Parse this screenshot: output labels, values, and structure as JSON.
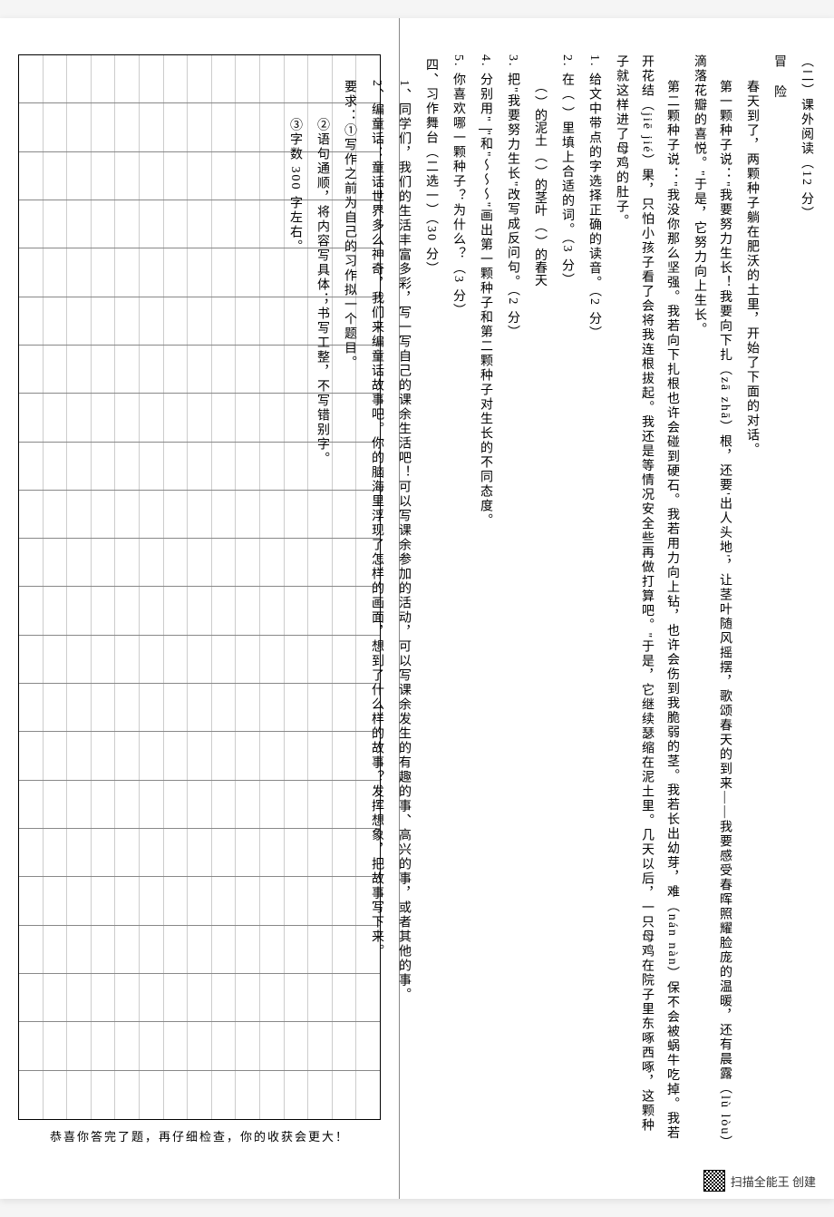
{
  "header": {
    "section": "（二）课外阅读（12 分）",
    "title": "冒 险"
  },
  "passage": {
    "p1": "春天到了，两颗种子躺在肥沃的土里，开始了下面的对话。",
    "p2": "第一颗种子说：\"我要努力生长！我要向下扎（zā zhā）根，还要'出人头地'，让茎叶随风摇摆，歌颂春天的到来——我要感受春晖照耀脸庞的温暖，还有晨露（lù lòu）滴落花瓣的喜悦。\"于是，它努力向上生长。",
    "p3": "第二颗种子说：\"我没你那么坚强。我若向下扎根也许会碰到硬石。我若用力向上钻，也许会伤到我脆弱的茎。我若长出幼芽，难（nán nàn）保不会被蜗牛吃掉。我若开花结（jiē jié）果，只怕小孩子看了会将我连根拔起。我还是等情况安全些再做打算吧。\"于是，它继续瑟缩在泥土里。几天以后，一只母鸡在院子里东啄西啄，这颗种子就这样进了母鸡的肚子。",
    "q1": "1. 给文中带点的字选择正确的读音。（2 分）",
    "q2_lead": "2. 在（  ）里填上合适的词。（3 分）",
    "q2_items": "（    ）的泥土  （    ）的茎叶  （    ）的春天",
    "q3": "3. 把\"我要努力生长\"改写成反问句。（2 分）",
    "q3_blank": "                                                            ",
    "q4_a": "4. 分别用\"",
    "q4_u1": "    ",
    "q4_b": "\"和\"",
    "q4_u2": "～～～",
    "q4_c": "\"画出第一颗种子和第二颗种子对生长的不同态度。",
    "q5": "5. 你喜欢哪一颗种子？为什么？（3 分）",
    "q5_blank": "                                                            "
  },
  "writing": {
    "title": "四、习作舞台（二选一）（30 分）",
    "prompt1_a": "1、同学们，我们的生活丰富多彩，写一写自己的课余生活吧！可以写课余参加的活动，可以写课余发生的有趣的事、高兴的事，或者其他的事。",
    "prompt2_a": "2、编童话：童话世界多么神奇，我们来编童话故事吧。你的脑海里浮现了怎样的画面，想到了什么样的故事？发挥想象，把故事写下来。",
    "req_label": "要求：",
    "req1": "①写作之前为自己的习作拟一个题目。",
    "req2": "②语句通顺，将内容写具体；书写工整，不写错别字。",
    "req3": "③字数 300 字左右。"
  },
  "footer": "恭喜你答完了题，再仔细检查，你的收获会更大！",
  "qr_label": "扫描全能王  创建",
  "grid": {
    "rows": 22,
    "cols": 15
  }
}
